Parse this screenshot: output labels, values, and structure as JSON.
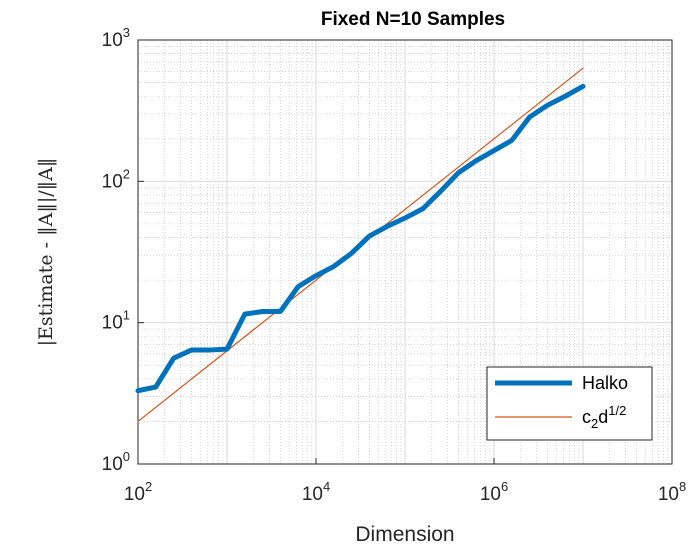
{
  "chart_data": {
    "type": "line",
    "title": "Fixed N=10 Samples",
    "xlabel": "Dimension",
    "ylabel": "|Estimate - ‖A‖|/‖A‖",
    "xscale": "log",
    "yscale": "log",
    "xlim": [
      100,
      100000000
    ],
    "ylim": [
      1,
      1000
    ],
    "grid": true,
    "minor_grid": true,
    "legend_position": "bottom-right",
    "x_ticks": [
      {
        "base": "10",
        "exp": "2",
        "value": 100
      },
      {
        "base": "10",
        "exp": "4",
        "value": 10000
      },
      {
        "base": "10",
        "exp": "6",
        "value": 1000000
      },
      {
        "base": "10",
        "exp": "8",
        "value": 100000000
      }
    ],
    "y_ticks": [
      {
        "base": "10",
        "exp": "0",
        "value": 1
      },
      {
        "base": "10",
        "exp": "1",
        "value": 10
      },
      {
        "base": "10",
        "exp": "2",
        "value": 100
      },
      {
        "base": "10",
        "exp": "3",
        "value": 1000
      }
    ],
    "series": [
      {
        "name": "Halko",
        "color": "#0072BD",
        "x": [
          100,
          158,
          251,
          398,
          631,
          1000,
          1585,
          2512,
          3981,
          6310,
          10000,
          15849,
          25119,
          39811,
          63096,
          100000,
          158489,
          251189,
          398107,
          630957,
          1000000,
          1584893,
          2511886,
          3981072,
          6309573,
          10000000
        ],
        "y": [
          3.3,
          3.5,
          5.6,
          6.4,
          6.4,
          6.5,
          11.5,
          12.0,
          12.0,
          18.0,
          21.5,
          25.0,
          31.0,
          41.0,
          48.0,
          55.0,
          64.0,
          85.0,
          115.0,
          140.0,
          165.0,
          195.0,
          285.0,
          345.0,
          400.0,
          470.0
        ]
      },
      {
        "name_base": "c",
        "name_sub": "2",
        "name_mid": "d",
        "name_sup": "1/2",
        "color": "#D95319",
        "x": [
          100,
          10000000
        ],
        "y": [
          2.0,
          632.0
        ]
      }
    ]
  }
}
